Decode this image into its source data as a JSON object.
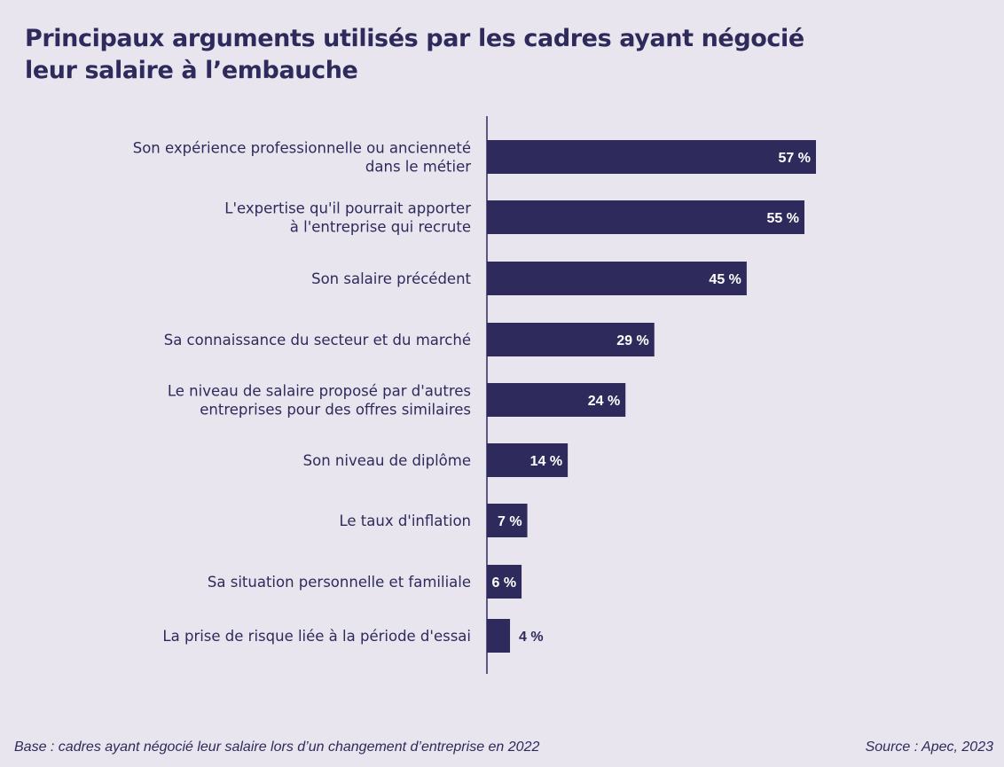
{
  "title": {
    "line1": "Principaux arguments utilisés par les cadres ayant négocié",
    "line2": "leur salaire à l’embauche"
  },
  "footer": {
    "base": "Base : cadres ayant négocié leur salaire lors d’un changement d’entreprise en 2022",
    "source": "Source : Apec, 2023"
  },
  "colors": {
    "bar": "#2e2a5c",
    "background": "#e8e5ee"
  },
  "chart_data": {
    "type": "bar",
    "orientation": "horizontal",
    "categories": [
      [
        "Son expérience professionnelle ou ancienneté",
        "dans le métier"
      ],
      [
        "L'expertise qu'il pourrait apporter",
        "à l'entreprise qui recrute"
      ],
      [
        "Son salaire précédent"
      ],
      [
        "Sa connaissance du secteur et du marché"
      ],
      [
        "Le niveau de salaire proposé par d'autres",
        "entreprises pour des offres similaires"
      ],
      [
        "Son niveau de diplôme"
      ],
      [
        "Le taux d'inflation"
      ],
      [
        "Sa situation personnelle et familiale"
      ],
      [
        "La prise de risque liée à la période d'essai"
      ]
    ],
    "values": [
      57,
      55,
      45,
      29,
      24,
      14,
      7,
      6,
      4
    ],
    "value_labels": [
      "57 %",
      "55 %",
      "45 %",
      "29 %",
      "24 %",
      "14 %",
      "7 %",
      "6 %",
      "4 %"
    ],
    "unit": "%",
    "xlim": [
      0,
      57
    ],
    "grid": false,
    "legend": "none"
  }
}
